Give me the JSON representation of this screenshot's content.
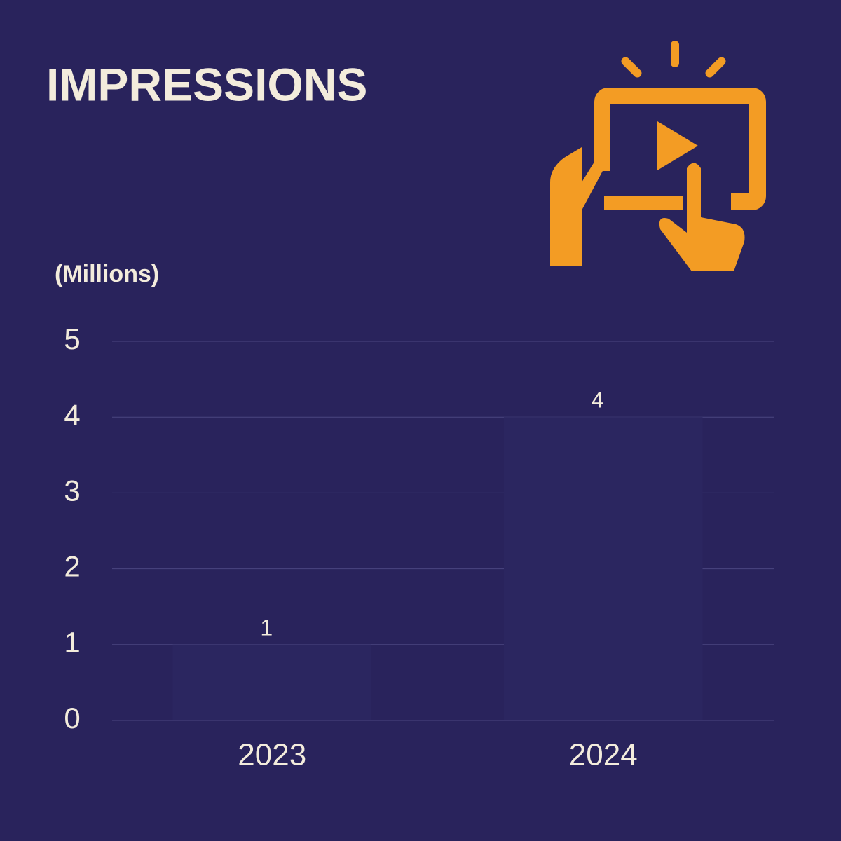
{
  "chart_data": {
    "type": "bar",
    "title": "IMPRESSIONS",
    "y_label": "(Millions)",
    "categories": [
      "2023",
      "2024"
    ],
    "values": [
      1,
      4
    ],
    "color": "#2b2660",
    "ylim": [
      0,
      5
    ],
    "yticks": [
      0,
      1,
      2,
      3,
      4,
      5
    ],
    "grid": true
  }
}
